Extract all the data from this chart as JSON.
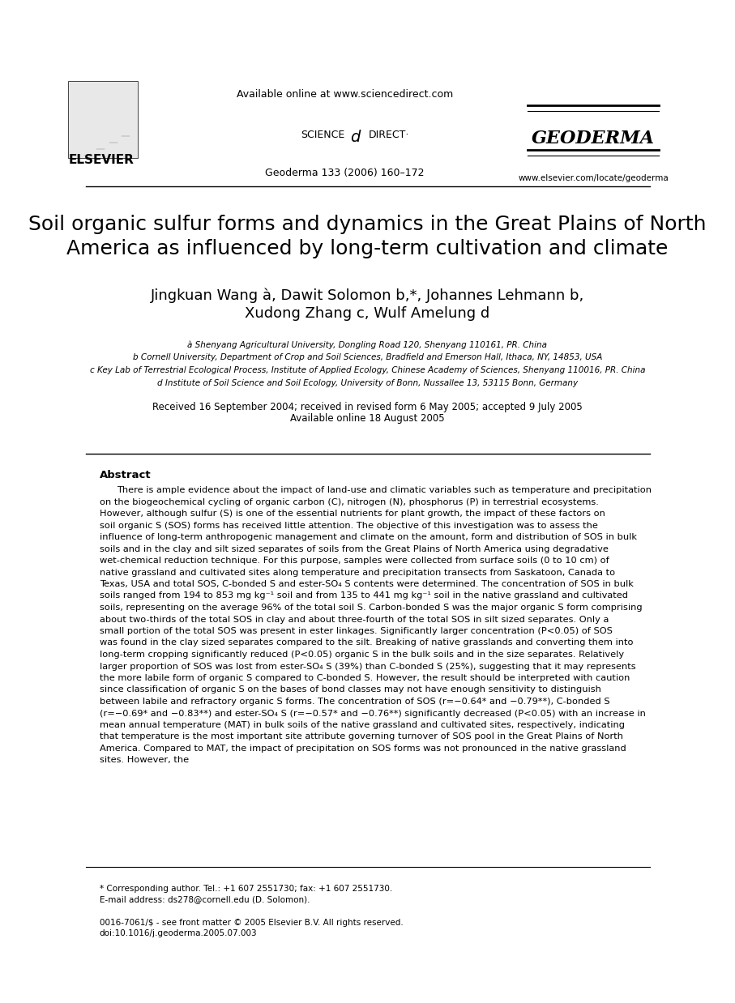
{
  "bg_color": "#ffffff",
  "header": {
    "available_online": "Available online at www.sciencedirect.com",
    "science_direct": "SCIENCE ⓓ DIRECT·",
    "geoderma_journal": "GEODERMA",
    "journal_info": "Geoderma 133 (2006) 160–172",
    "journal_url": "www.elsevier.com/locate/geoderma",
    "elsevier": "ELSEVIER"
  },
  "title": "Soil organic sulfur forms and dynamics in the Great Plains of North\nAmerica as influenced by long-term cultivation and climate",
  "authors": "Jingkuan Wang à, Dawit Solomon b,*, Johannes Lehmann b,\nXudong Zhang c, Wulf Amelung d",
  "affiliations": [
    "à Shenyang Agricultural University, Dongling Road 120, Shenyang 110161, PR. China",
    "b Cornell University, Department of Crop and Soil Sciences, Bradfield and Emerson Hall, Ithaca, NY, 14853, USA",
    "c Key Lab of Terrestrial Ecological Process, Institute of Applied Ecology, Chinese Academy of Sciences, Shenyang 110016, PR. China",
    "d Institute of Soil Science and Soil Ecology, University of Bonn, Nussallee 13, 53115 Bonn, Germany"
  ],
  "received": "Received 16 September 2004; received in revised form 6 May 2005; accepted 9 July 2005",
  "available": "Available online 18 August 2005",
  "abstract_title": "Abstract",
  "abstract_text": "There is ample evidence about the impact of land-use and climatic variables such as temperature and precipitation on the biogeochemical cycling of organic carbon (C), nitrogen (N), phosphorus (P) in terrestrial ecosystems. However, although sulfur (S) is one of the essential nutrients for plant growth, the impact of these factors on soil organic S (SOS) forms has received little attention. The objective of this investigation was to assess the influence of long-term anthropogenic management and climate on the amount, form and distribution of SOS in bulk soils and in the clay and silt sized separates of soils from the Great Plains of North America using degradative wet-chemical reduction technique. For this purpose, samples were collected from surface soils (0 to 10 cm) of native grassland and cultivated sites along temperature and precipitation transects from Saskatoon, Canada to Texas, USA and total SOS, C-bonded S and ester-SO₄ S contents were determined. The concentration of SOS in bulk soils ranged from 194 to 853 mg kg⁻¹ soil and from 135 to 441 mg kg⁻¹ soil in the native grassland and cultivated soils, representing on the average 96% of the total soil S. Carbon-bonded S was the major organic S form comprising about two-thirds of the total SOS in clay and about three-fourth of the total SOS in silt sized separates. Only a small portion of the total SOS was present in ester linkages. Significantly larger concentration (P<0.05) of SOS was found in the clay sized separates compared to the silt. Breaking of native grasslands and converting them into long-term cropping significantly reduced (P<0.05) organic S in the bulk soils and in the size separates. Relatively larger proportion of SOS was lost from ester-SO₄ S (39%) than C-bonded S (25%), suggesting that it may represents the more labile form of organic S compared to C-bonded S. However, the result should be interpreted with caution since classification of organic S on the bases of bond classes may not have enough sensitivity to distinguish between labile and refractory organic S forms. The concentration of SOS (r=−0.64* and −0.79**), C-bonded S (r=−0.69* and −0.83**) and ester-SO₄ S (r=−0.57* and −0.76**) significantly decreased (P<0.05) with an increase in mean annual temperature (MAT) in bulk soils of the native grassland and cultivated sites, respectively, indicating that temperature is the most important site attribute governing turnover of SOS pool in the Great Plains of North America. Compared to MAT, the impact of precipitation on SOS forms was not pronounced in the native grassland sites. However, the",
  "footer_note": "* Corresponding author. Tel.: +1 607 2551730; fax: +1 607 2551730.",
  "footer_email": "E-mail address: ds278@cornell.edu (D. Solomon).",
  "footer_copyright": "0016-7061/$ - see front matter © 2005 Elsevier B.V. All rights reserved.",
  "footer_doi": "doi:10.1016/j.geoderma.2005.07.003"
}
